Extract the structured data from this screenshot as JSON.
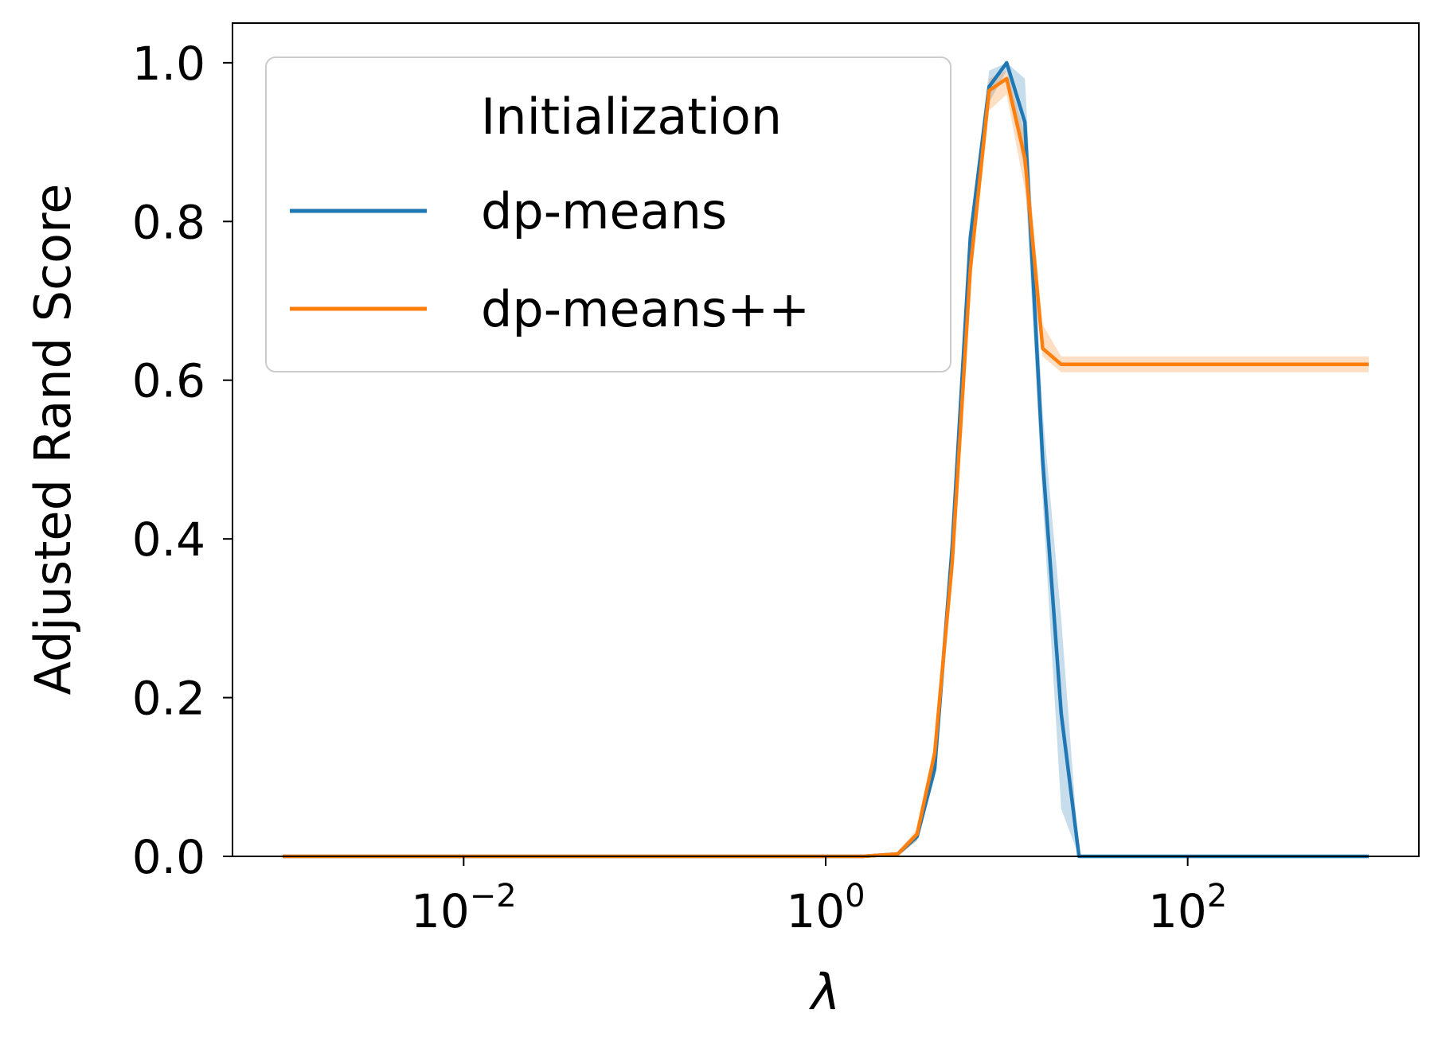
{
  "chart_data": {
    "type": "line",
    "xscale": "log",
    "xlim": [
      0.001,
      1000
    ],
    "ylim": [
      0.0,
      1.05
    ],
    "xlabel": "λ",
    "ylabel": "Adjusted Rand Score",
    "x_ticks": [
      {
        "value": 0.01,
        "base": "10",
        "exp": "−2"
      },
      {
        "value": 1,
        "base": "10",
        "exp": "0"
      },
      {
        "value": 100,
        "base": "10",
        "exp": "2"
      }
    ],
    "y_ticks": [
      {
        "value": 0.0,
        "label": "0.0"
      },
      {
        "value": 0.2,
        "label": "0.2"
      },
      {
        "value": 0.4,
        "label": "0.4"
      },
      {
        "value": 0.6,
        "label": "0.6"
      },
      {
        "value": 0.8,
        "label": "0.8"
      },
      {
        "value": 1.0,
        "label": "1.0"
      }
    ],
    "legend": {
      "title": "Initialization",
      "placement": "upper-left"
    },
    "series": [
      {
        "name": "dp-means",
        "color": "#1f77b4",
        "x": [
          0.001,
          0.5,
          1.6,
          2.5,
          3.2,
          4.0,
          5.0,
          6.3,
          8.0,
          10.0,
          12.6,
          15.8,
          20.0,
          25.1,
          1000
        ],
        "y": [
          0.0,
          0.0,
          0.0,
          0.003,
          0.025,
          0.11,
          0.39,
          0.78,
          0.97,
          1.0,
          0.925,
          0.5,
          0.18,
          0.0,
          0.0
        ],
        "lower": [
          0.0,
          0.0,
          0.0,
          0.0,
          0.02,
          0.1,
          0.37,
          0.76,
          0.95,
          0.99,
          0.86,
          0.45,
          0.06,
          0.0,
          0.0
        ],
        "upper": [
          0.0,
          0.0,
          0.0,
          0.005,
          0.03,
          0.12,
          0.41,
          0.8,
          0.99,
          1.0,
          0.98,
          0.56,
          0.3,
          0.0,
          0.0
        ]
      },
      {
        "name": "dp-means++",
        "color": "#ff7f0e",
        "x": [
          0.001,
          0.5,
          1.6,
          2.5,
          3.2,
          4.0,
          5.0,
          6.3,
          8.0,
          10.0,
          12.6,
          15.8,
          20.0,
          25.1,
          1000
        ],
        "y": [
          0.0,
          0.0,
          0.0,
          0.003,
          0.028,
          0.13,
          0.37,
          0.74,
          0.965,
          0.98,
          0.88,
          0.64,
          0.62,
          0.62,
          0.62
        ],
        "lower": [
          0.0,
          0.0,
          0.0,
          0.0,
          0.02,
          0.12,
          0.35,
          0.72,
          0.94,
          0.96,
          0.84,
          0.63,
          0.61,
          0.61,
          0.61
        ],
        "upper": [
          0.0,
          0.0,
          0.0,
          0.005,
          0.035,
          0.14,
          0.39,
          0.76,
          0.98,
          0.99,
          0.91,
          0.67,
          0.63,
          0.63,
          0.63
        ]
      }
    ]
  }
}
